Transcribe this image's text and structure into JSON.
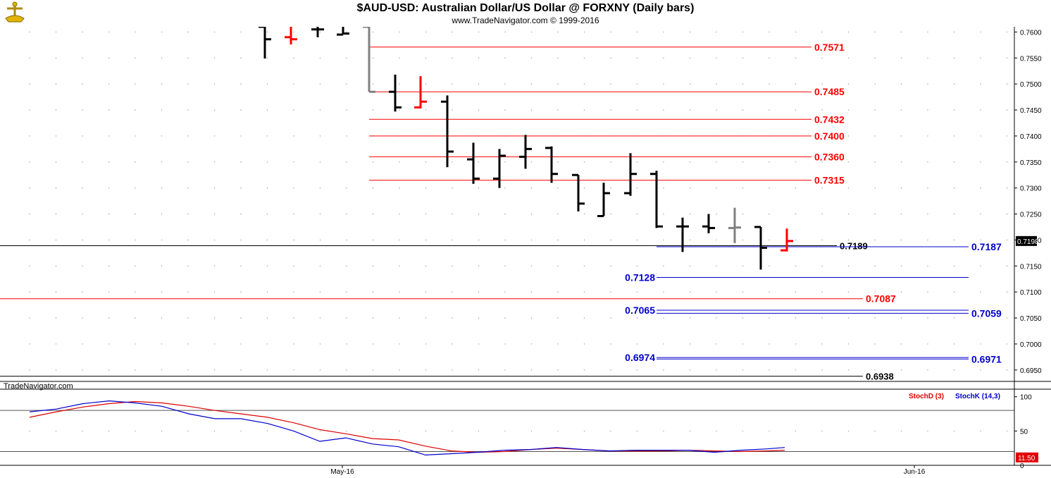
{
  "header": {
    "title": "$AUD-USD:  Australian Dollar/US Dollar @ FORXNY  (Daily bars)",
    "subtitle": "www.TradeNavigator.com © 1999-2016"
  },
  "watermark": "TradeNavigator.com",
  "colors": {
    "up_bar": "#000000",
    "down_bar": "#ff0000",
    "neutral_bar": "#808080",
    "red_level": "#ff0000",
    "blue_level": "#0000cc",
    "stoch_d": "#dd0000",
    "stoch_k": "#0000cc"
  },
  "chart_data": [
    {
      "type": "ohlc",
      "title": "$AUD-USD:  Australian Dollar/US Dollar @ FORXNY  (Daily bars)",
      "y_axis_side": "right",
      "ylim": [
        0.6928,
        0.761
      ],
      "y_ticks": [
        "0.7600",
        "0.7550",
        "0.7500",
        "0.7450",
        "0.7400",
        "0.7350",
        "0.7300",
        "0.7250",
        "0.7200",
        "0.7150",
        "0.7100",
        "0.7050",
        "0.7000",
        "0.6950"
      ],
      "x_tick_labels": [
        "May-16",
        "Jun-16"
      ],
      "last_price_label": "0.7198",
      "bars": [
        {
          "x": 376,
          "o": 0.761,
          "h": 0.761,
          "l": 0.7549,
          "c": 0.7586,
          "color": "up"
        },
        {
          "x": 413,
          "o": 0.759,
          "h": 0.761,
          "l": 0.7576,
          "c": 0.7586,
          "color": "down"
        },
        {
          "x": 451,
          "o": 0.7605,
          "h": 0.761,
          "l": 0.759,
          "c": 0.7605,
          "color": "up"
        },
        {
          "x": 487,
          "o": 0.7595,
          "h": 0.761,
          "l": 0.7595,
          "c": 0.7597,
          "color": "up"
        },
        {
          "x": 524,
          "o": 0.761,
          "h": 0.761,
          "l": 0.7485,
          "c": 0.7485,
          "color": "neutral"
        },
        {
          "x": 561,
          "o": 0.7485,
          "h": 0.7518,
          "l": 0.7447,
          "c": 0.7455,
          "color": "up"
        },
        {
          "x": 597,
          "o": 0.7455,
          "h": 0.7515,
          "l": 0.7453,
          "c": 0.7466,
          "color": "down"
        },
        {
          "x": 635,
          "o": 0.7466,
          "h": 0.7478,
          "l": 0.734,
          "c": 0.737,
          "color": "up"
        },
        {
          "x": 672,
          "o": 0.7355,
          "h": 0.7387,
          "l": 0.7308,
          "c": 0.7318,
          "color": "up"
        },
        {
          "x": 709,
          "o": 0.7318,
          "h": 0.7375,
          "l": 0.73,
          "c": 0.7362,
          "color": "up"
        },
        {
          "x": 746,
          "o": 0.736,
          "h": 0.7402,
          "l": 0.7337,
          "c": 0.7375,
          "color": "up"
        },
        {
          "x": 783,
          "o": 0.7377,
          "h": 0.738,
          "l": 0.731,
          "c": 0.7327,
          "color": "up"
        },
        {
          "x": 821,
          "o": 0.7325,
          "h": 0.7325,
          "l": 0.7255,
          "c": 0.727,
          "color": "up"
        },
        {
          "x": 857,
          "o": 0.7246,
          "h": 0.731,
          "l": 0.7246,
          "c": 0.729,
          "color": "up"
        },
        {
          "x": 895,
          "o": 0.729,
          "h": 0.7367,
          "l": 0.7285,
          "c": 0.7327,
          "color": "up"
        },
        {
          "x": 932,
          "o": 0.7327,
          "h": 0.7333,
          "l": 0.7223,
          "c": 0.7226,
          "color": "up"
        },
        {
          "x": 969,
          "o": 0.7226,
          "h": 0.7243,
          "l": 0.7177,
          "c": 0.7226,
          "color": "up"
        },
        {
          "x": 1006,
          "o": 0.7226,
          "h": 0.725,
          "l": 0.7213,
          "c": 0.7223,
          "color": "up"
        },
        {
          "x": 1043,
          "o": 0.7223,
          "h": 0.7262,
          "l": 0.7194,
          "c": 0.7224,
          "color": "neutral"
        },
        {
          "x": 1080,
          "o": 0.7225,
          "h": 0.7225,
          "l": 0.7143,
          "c": 0.7185,
          "color": "up"
        },
        {
          "x": 1117,
          "o": 0.718,
          "h": 0.7222,
          "l": 0.7178,
          "c": 0.7198,
          "color": "down"
        }
      ],
      "levels": [
        {
          "price": 0.7571,
          "label": "0.7571",
          "color": "red",
          "x_from": 524,
          "x_to": 1152,
          "label_side": "right"
        },
        {
          "price": 0.7485,
          "label": "0.7485",
          "color": "red",
          "x_from": 524,
          "x_to": 1152,
          "label_side": "right"
        },
        {
          "price": 0.7432,
          "label": "0.7432",
          "color": "red",
          "x_from": 524,
          "x_to": 1152,
          "label_side": "right"
        },
        {
          "price": 0.74,
          "label": "0.7400",
          "color": "red",
          "x_from": 524,
          "x_to": 1152,
          "label_side": "right"
        },
        {
          "price": 0.736,
          "label": "0.7360",
          "color": "red",
          "x_from": 524,
          "x_to": 1152,
          "label_side": "right"
        },
        {
          "price": 0.7315,
          "label": "0.7315",
          "color": "red",
          "x_from": 524,
          "x_to": 1152,
          "label_side": "right"
        },
        {
          "price": 0.7189,
          "label": "0.7189",
          "color": "black",
          "x_from": 0,
          "x_to": 1188,
          "label_side": "right"
        },
        {
          "price": 0.7187,
          "label": "0.7187",
          "color": "blue",
          "x_from": 932,
          "x_to": 1375,
          "label_side": "right"
        },
        {
          "price": 0.7128,
          "label": "0.7128",
          "color": "blue",
          "x_from": 932,
          "x_to": 1375,
          "label_side": "left"
        },
        {
          "price": 0.7087,
          "label": "0.7087",
          "color": "red",
          "x_from": 0,
          "x_to": 1225,
          "label_side": "right"
        },
        {
          "price": 0.7065,
          "label": "0.7065",
          "color": "blue",
          "x_from": 932,
          "x_to": 1375,
          "label_side": "left"
        },
        {
          "price": 0.7059,
          "label": "0.7059",
          "color": "blue",
          "x_from": 932,
          "x_to": 1375,
          "label_side": "right"
        },
        {
          "price": 0.6974,
          "label": "0.6974",
          "color": "blue",
          "x_from": 932,
          "x_to": 1375,
          "label_side": "left"
        },
        {
          "price": 0.6971,
          "label": "0.6971",
          "color": "blue",
          "x_from": 932,
          "x_to": 1375,
          "label_side": "right"
        },
        {
          "price": 0.6938,
          "label": "0.6938",
          "color": "black",
          "x_from": 0,
          "x_to": 1225,
          "label_side": "right"
        }
      ]
    },
    {
      "type": "line",
      "title": "",
      "ylim": [
        0,
        110
      ],
      "y_ticks": [
        "100",
        "50",
        "0"
      ],
      "reference_lines": [
        80,
        20
      ],
      "last_value_label": "11.50",
      "series": [
        {
          "name": "StochD (3)",
          "color": "red",
          "points": [
            [
              42,
              70
            ],
            [
              80,
              78
            ],
            [
              118,
              85
            ],
            [
              155,
              90
            ],
            [
              192,
              93
            ],
            [
              230,
              91
            ],
            [
              268,
              86
            ],
            [
              305,
              80
            ],
            [
              342,
              75
            ],
            [
              380,
              70
            ],
            [
              417,
              62
            ],
            [
              454,
              52
            ],
            [
              491,
              46
            ],
            [
              529,
              39
            ],
            [
              566,
              37
            ],
            [
              604,
              28
            ],
            [
              641,
              21
            ],
            [
              678,
              19
            ],
            [
              716,
              20
            ],
            [
              753,
              23
            ],
            [
              790,
              25
            ],
            [
              828,
              23
            ],
            [
              865,
              21
            ],
            [
              902,
              21
            ],
            [
              940,
              21
            ],
            [
              977,
              22
            ],
            [
              1014,
              21
            ],
            [
              1052,
              20
            ],
            [
              1089,
              21
            ],
            [
              1114,
              22
            ]
          ]
        },
        {
          "name": "StochK (14,3)",
          "color": "blue",
          "points": [
            [
              42,
              78
            ],
            [
              80,
              82
            ],
            [
              118,
              90
            ],
            [
              155,
              94
            ],
            [
              192,
              91
            ],
            [
              230,
              86
            ],
            [
              268,
              75
            ],
            [
              305,
              68
            ],
            [
              342,
              68
            ],
            [
              380,
              61
            ],
            [
              417,
              50
            ],
            [
              454,
              35
            ],
            [
              491,
              40
            ],
            [
              529,
              31
            ],
            [
              566,
              27
            ],
            [
              604,
              15
            ],
            [
              641,
              17
            ],
            [
              678,
              19
            ],
            [
              716,
              22
            ],
            [
              753,
              23
            ],
            [
              790,
              26
            ],
            [
              828,
              23
            ],
            [
              865,
              21
            ],
            [
              902,
              22
            ],
            [
              940,
              22
            ],
            [
              977,
              22
            ],
            [
              1014,
              19
            ],
            [
              1052,
              22
            ],
            [
              1089,
              24
            ],
            [
              1114,
              26
            ]
          ]
        }
      ]
    }
  ]
}
